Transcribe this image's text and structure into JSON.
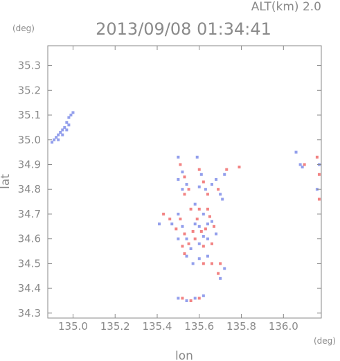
{
  "chart_data": {
    "type": "scatter",
    "title": "2013/09/08 01:34:41",
    "subtitle": "ALT(km) 2.0",
    "xlabel": "lon",
    "ylabel": "lat",
    "xunit": "(deg)",
    "yunit": "(deg)",
    "xlim": [
      134.88,
      136.18
    ],
    "ylim": [
      34.28,
      35.38
    ],
    "xticks": [
      135.0,
      135.2,
      135.4,
      135.6,
      135.8,
      136.0
    ],
    "xtick_labels": [
      "135.0",
      "135.2",
      "135.4",
      "135.6",
      "135.8",
      "136.0"
    ],
    "yticks": [
      34.3,
      34.4,
      34.5,
      34.6,
      34.7,
      34.8,
      34.9,
      35.0,
      35.1,
      35.2,
      35.3
    ],
    "ytick_labels": [
      "34.3",
      "34.4",
      "34.5",
      "34.6",
      "34.7",
      "34.8",
      "34.9",
      "35.0",
      "35.1",
      "35.2",
      "35.3"
    ],
    "grid": false,
    "colors": {
      "positive": "#ee5a5a",
      "negative": "#6f7fe6",
      "frame": "#8a8a8a"
    },
    "series": [
      {
        "name": "",
        "points": [
          [
            134.9,
            34.99,
            -1
          ],
          [
            134.91,
            35.0,
            -1
          ],
          [
            134.92,
            35.01,
            -1
          ],
          [
            134.93,
            35.02,
            -1
          ],
          [
            134.94,
            35.03,
            -1
          ],
          [
            134.95,
            35.04,
            -1
          ],
          [
            134.96,
            35.05,
            -1
          ],
          [
            134.97,
            35.07,
            -1
          ],
          [
            134.98,
            35.09,
            -1
          ],
          [
            134.99,
            35.1,
            -1
          ],
          [
            135.0,
            35.11,
            -1
          ],
          [
            134.93,
            35.0,
            -1
          ],
          [
            134.95,
            35.02,
            -1
          ],
          [
            134.97,
            35.04,
            -1
          ],
          [
            134.98,
            35.06,
            -1
          ],
          [
            135.5,
            34.93,
            -1
          ],
          [
            135.51,
            34.9,
            1
          ],
          [
            135.52,
            34.87,
            -1
          ],
          [
            135.53,
            34.85,
            1
          ],
          [
            135.5,
            34.84,
            -1
          ],
          [
            135.54,
            34.82,
            -1
          ],
          [
            135.55,
            34.8,
            1
          ],
          [
            135.52,
            34.8,
            -1
          ],
          [
            135.53,
            34.78,
            1
          ],
          [
            135.59,
            34.93,
            -1
          ],
          [
            135.6,
            34.88,
            1
          ],
          [
            135.61,
            34.86,
            -1
          ],
          [
            135.62,
            34.83,
            1
          ],
          [
            135.6,
            34.81,
            -1
          ],
          [
            135.63,
            34.8,
            -1
          ],
          [
            135.64,
            34.78,
            1
          ],
          [
            135.66,
            34.82,
            -1
          ],
          [
            135.68,
            34.84,
            -1
          ],
          [
            135.69,
            34.8,
            1
          ],
          [
            135.7,
            34.78,
            -1
          ],
          [
            135.72,
            34.86,
            -1
          ],
          [
            135.73,
            34.88,
            1
          ],
          [
            135.71,
            34.76,
            -1
          ],
          [
            135.79,
            34.89,
            1
          ],
          [
            135.46,
            34.68,
            1
          ],
          [
            135.47,
            34.66,
            -1
          ],
          [
            135.49,
            34.64,
            1
          ],
          [
            135.5,
            34.7,
            -1
          ],
          [
            135.51,
            34.68,
            1
          ],
          [
            135.52,
            34.65,
            -1
          ],
          [
            135.53,
            34.62,
            1
          ],
          [
            135.54,
            34.6,
            -1
          ],
          [
            135.55,
            34.58,
            1
          ],
          [
            135.56,
            34.56,
            -1
          ],
          [
            135.57,
            34.63,
            1
          ],
          [
            135.58,
            34.66,
            -1
          ],
          [
            135.59,
            34.68,
            1
          ],
          [
            135.6,
            34.65,
            -1
          ],
          [
            135.61,
            34.63,
            1
          ],
          [
            135.62,
            34.61,
            -1
          ],
          [
            135.63,
            34.64,
            1
          ],
          [
            135.64,
            34.66,
            -1
          ],
          [
            135.65,
            34.69,
            1
          ],
          [
            135.66,
            34.67,
            -1
          ],
          [
            135.67,
            34.65,
            1
          ],
          [
            135.68,
            34.62,
            -1
          ],
          [
            135.56,
            34.72,
            1
          ],
          [
            135.58,
            34.74,
            -1
          ],
          [
            135.6,
            34.72,
            1
          ],
          [
            135.62,
            34.7,
            -1
          ],
          [
            135.64,
            34.72,
            1
          ],
          [
            135.5,
            34.6,
            -1
          ],
          [
            135.52,
            34.57,
            1
          ],
          [
            135.54,
            34.53,
            -1
          ],
          [
            135.58,
            34.6,
            1
          ],
          [
            135.6,
            34.58,
            -1
          ],
          [
            135.62,
            34.57,
            1
          ],
          [
            135.64,
            34.6,
            -1
          ],
          [
            135.66,
            34.58,
            1
          ],
          [
            135.6,
            34.52,
            -1
          ],
          [
            135.62,
            34.5,
            1
          ],
          [
            135.64,
            34.53,
            -1
          ],
          [
            135.66,
            34.5,
            1
          ],
          [
            135.57,
            34.5,
            -1
          ],
          [
            135.7,
            34.5,
            1
          ],
          [
            135.72,
            34.48,
            -1
          ],
          [
            135.69,
            34.46,
            1
          ],
          [
            135.7,
            34.44,
            -1
          ],
          [
            135.53,
            34.54,
            1
          ],
          [
            135.41,
            34.66,
            -1
          ],
          [
            135.43,
            34.7,
            1
          ],
          [
            135.5,
            34.36,
            -1
          ],
          [
            135.52,
            34.36,
            1
          ],
          [
            135.54,
            34.35,
            -1
          ],
          [
            135.56,
            34.35,
            1
          ],
          [
            135.58,
            34.36,
            -1
          ],
          [
            135.6,
            34.36,
            1
          ],
          [
            135.62,
            34.37,
            -1
          ],
          [
            136.06,
            34.95,
            -1
          ],
          [
            136.08,
            34.9,
            -1
          ],
          [
            136.09,
            34.89,
            -1
          ],
          [
            136.1,
            34.9,
            1
          ],
          [
            136.16,
            34.93,
            1
          ],
          [
            136.17,
            34.9,
            -1
          ],
          [
            136.17,
            34.86,
            1
          ],
          [
            136.16,
            34.8,
            -1
          ],
          [
            136.17,
            34.76,
            1
          ]
        ]
      }
    ]
  }
}
